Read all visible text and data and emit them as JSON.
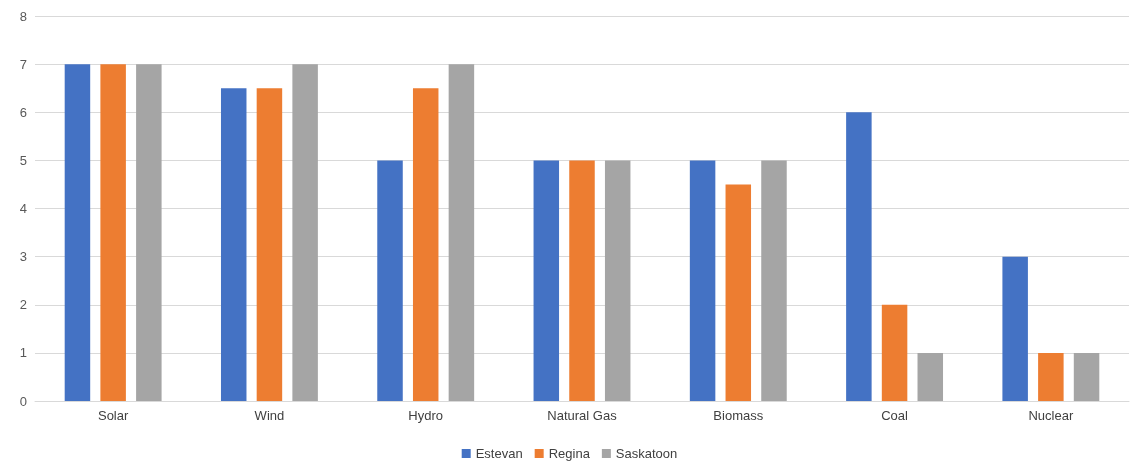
{
  "chart_data": {
    "type": "bar",
    "categories": [
      "Solar",
      "Wind",
      "Hydro",
      "Natural Gas",
      "Biomass",
      "Coal",
      "Nuclear"
    ],
    "series": [
      {
        "name": "Estevan",
        "color": "#4472c4",
        "values": [
          7,
          6.5,
          5,
          5,
          5,
          6,
          3
        ]
      },
      {
        "name": "Regina",
        "color": "#ed7d31",
        "values": [
          7,
          6.5,
          6.5,
          5,
          4.5,
          2,
          1
        ]
      },
      {
        "name": "Saskatoon",
        "color": "#a5a5a5",
        "values": [
          7,
          7,
          7,
          5,
          5,
          1,
          1
        ]
      }
    ],
    "ylim": [
      0,
      8
    ],
    "yticks": [
      0,
      1,
      2,
      3,
      4,
      5,
      6,
      7,
      8
    ],
    "grid": "y",
    "legend": "bottom"
  }
}
